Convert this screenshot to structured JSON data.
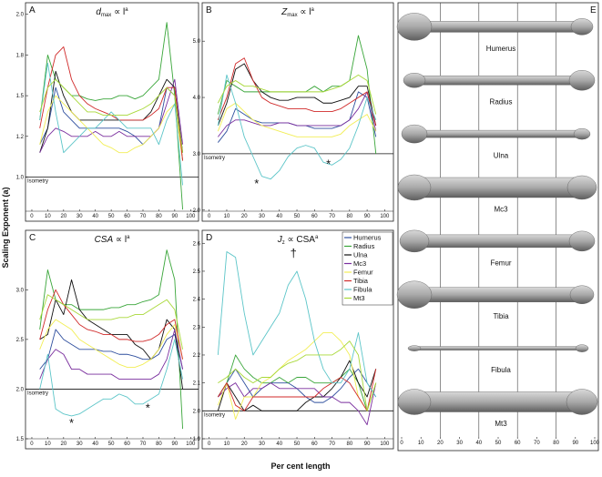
{
  "ylabel": "Scaling Exponent (a)",
  "xlabel": "Per cent length",
  "chart_data": [
    {
      "type": "line",
      "label": "A",
      "title": {
        "base": "d",
        "sub": "max",
        "rest": " ∝ l",
        "sup": "a"
      },
      "x": [
        5,
        10,
        15,
        20,
        25,
        30,
        35,
        40,
        45,
        50,
        55,
        60,
        65,
        70,
        75,
        80,
        85,
        90,
        95
      ],
      "xlim": [
        -4,
        105
      ],
      "xticks": [
        0,
        10,
        20,
        30,
        40,
        50,
        60,
        70,
        80,
        90,
        100
      ],
      "ylim": [
        0.79,
        2.06
      ],
      "yticks": [
        {
          "value": 1.0,
          "label": "1.0"
        },
        {
          "value": 1.25,
          "label": "1.2"
        },
        {
          "value": 1.5,
          "label": "1.5"
        },
        {
          "value": 1.75,
          "label": "1.8"
        },
        {
          "value": 2.0,
          "label": "2.0"
        }
      ],
      "reference": {
        "value": 1,
        "label": "Isometry"
      },
      "series": [
        {
          "color": "#2f4f9e",
          "values": [
            1.2,
            1.3,
            1.55,
            1.4,
            1.35,
            1.3,
            1.3,
            1.3,
            1.3,
            1.3,
            1.3,
            1.28,
            1.25,
            1.2,
            1.25,
            1.3,
            1.55,
            1.5,
            1.1
          ]
        },
        {
          "color": "#3aa63a",
          "values": [
            1.35,
            1.75,
            1.6,
            1.55,
            1.5,
            1.5,
            1.48,
            1.47,
            1.48,
            1.48,
            1.5,
            1.5,
            1.48,
            1.5,
            1.55,
            1.6,
            1.95,
            1.5,
            0.8
          ]
        },
        {
          "color": "#111111",
          "values": [
            1.15,
            1.3,
            1.65,
            1.5,
            1.4,
            1.35,
            1.35,
            1.35,
            1.35,
            1.35,
            1.35,
            1.35,
            1.35,
            1.35,
            1.4,
            1.5,
            1.6,
            1.55,
            1.15
          ]
        },
        {
          "color": "#7a2e9e",
          "values": [
            1.15,
            1.25,
            1.3,
            1.28,
            1.25,
            1.25,
            1.25,
            1.28,
            1.25,
            1.25,
            1.28,
            1.25,
            1.25,
            1.25,
            1.25,
            1.3,
            1.45,
            1.6,
            1.2
          ]
        },
        {
          "color": "#f2ee55",
          "values": [
            1.2,
            1.4,
            1.5,
            1.45,
            1.4,
            1.35,
            1.3,
            1.25,
            1.2,
            1.18,
            1.15,
            1.15,
            1.18,
            1.2,
            1.25,
            1.3,
            1.4,
            1.45,
            1.1
          ]
        },
        {
          "color": "#d02a2a",
          "values": [
            1.3,
            1.55,
            1.75,
            1.8,
            1.6,
            1.5,
            1.45,
            1.42,
            1.4,
            1.38,
            1.35,
            1.35,
            1.35,
            1.35,
            1.38,
            1.42,
            1.55,
            1.55,
            1.1
          ]
        },
        {
          "color": "#5cc5c8",
          "values": [
            1.35,
            1.7,
            1.4,
            1.15,
            1.2,
            1.25,
            1.3,
            1.3,
            1.35,
            1.4,
            1.35,
            1.3,
            1.3,
            1.3,
            1.3,
            1.2,
            1.35,
            1.45,
            0.95
          ]
        },
        {
          "color": "#a8d838",
          "values": [
            1.4,
            1.55,
            1.6,
            1.55,
            1.5,
            1.45,
            1.4,
            1.4,
            1.38,
            1.38,
            1.38,
            1.38,
            1.4,
            1.42,
            1.45,
            1.5,
            1.55,
            1.5,
            1.15
          ]
        }
      ],
      "annotations": []
    },
    {
      "type": "line",
      "label": "B",
      "title": {
        "base": "Z",
        "sub": "max",
        "rest": " ∝ l",
        "sup": "a"
      },
      "x": [
        5,
        10,
        15,
        20,
        25,
        30,
        35,
        40,
        45,
        50,
        55,
        60,
        65,
        70,
        75,
        80,
        85,
        90,
        95
      ],
      "xlim": [
        -4,
        105
      ],
      "xticks": [
        0,
        10,
        20,
        30,
        40,
        50,
        60,
        70,
        80,
        90,
        100
      ],
      "ylim": [
        1.98,
        5.65
      ],
      "yticks": [
        {
          "value": 2.0,
          "label": "2.0"
        },
        {
          "value": 3.0,
          "label": "3.0"
        },
        {
          "value": 4.0,
          "label": "4.0"
        },
        {
          "value": 5.0,
          "label": "5.0"
        }
      ],
      "reference": {
        "value": 3,
        "label": "Isometry"
      },
      "series": [
        {
          "color": "#2f4f9e",
          "values": [
            3.2,
            3.4,
            3.8,
            3.7,
            3.6,
            3.55,
            3.55,
            3.55,
            3.55,
            3.5,
            3.5,
            3.45,
            3.45,
            3.45,
            3.5,
            3.6,
            4.1,
            4.0,
            3.3
          ]
        },
        {
          "color": "#3aa63a",
          "values": [
            3.7,
            4.3,
            4.2,
            4.1,
            4.1,
            4.1,
            4.1,
            4.1,
            4.1,
            4.1,
            4.1,
            4.2,
            4.1,
            4.2,
            4.2,
            4.3,
            5.1,
            4.5,
            3.0
          ]
        },
        {
          "color": "#111111",
          "values": [
            3.5,
            3.9,
            4.5,
            4.6,
            4.3,
            4.1,
            4.0,
            3.95,
            3.95,
            4.0,
            4.0,
            4.0,
            3.9,
            3.9,
            3.95,
            4.0,
            4.2,
            4.2,
            3.5
          ]
        },
        {
          "color": "#7a2e9e",
          "values": [
            3.3,
            3.5,
            3.6,
            3.6,
            3.55,
            3.5,
            3.5,
            3.55,
            3.55,
            3.5,
            3.5,
            3.5,
            3.5,
            3.5,
            3.5,
            3.6,
            3.8,
            4.1,
            3.4
          ]
        },
        {
          "color": "#f2ee55",
          "values": [
            3.4,
            3.8,
            3.9,
            3.75,
            3.6,
            3.5,
            3.45,
            3.4,
            3.35,
            3.3,
            3.3,
            3.3,
            3.3,
            3.3,
            3.35,
            3.5,
            3.6,
            3.7,
            3.4
          ]
        },
        {
          "color": "#d02a2a",
          "values": [
            3.6,
            4.0,
            4.6,
            4.7,
            4.3,
            4.0,
            3.9,
            3.85,
            3.8,
            3.8,
            3.8,
            3.75,
            3.75,
            3.75,
            3.8,
            3.9,
            4.0,
            4.1,
            3.5
          ]
        },
        {
          "color": "#5cc5c8",
          "values": [
            3.5,
            4.4,
            3.9,
            3.3,
            2.95,
            2.6,
            2.55,
            2.7,
            2.95,
            3.1,
            3.15,
            3.1,
            2.85,
            2.8,
            2.9,
            3.1,
            3.5,
            4.0,
            3.6
          ]
        },
        {
          "color": "#a8d838",
          "values": [
            3.9,
            4.2,
            4.3,
            4.2,
            4.2,
            4.15,
            4.1,
            4.1,
            4.1,
            4.1,
            4.1,
            4.1,
            4.1,
            4.15,
            4.2,
            4.3,
            4.4,
            4.3,
            3.7
          ]
        }
      ],
      "annotations": [
        "*",
        "*"
      ]
    },
    {
      "type": "line",
      "label": "C",
      "title": {
        "base": "CSA",
        "rest": " ∝ l",
        "sup": "a"
      },
      "x": [
        5,
        10,
        15,
        20,
        25,
        30,
        35,
        40,
        45,
        50,
        55,
        60,
        65,
        70,
        75,
        80,
        85,
        90,
        95
      ],
      "xlim": [
        -4,
        105
      ],
      "xticks": [
        0,
        10,
        20,
        30,
        40,
        50,
        60,
        70,
        80,
        90,
        100
      ],
      "ylim": [
        1.5,
        3.58
      ],
      "yticks": [
        1.5,
        {
          "value": 2.0,
          "label": "2.0"
        },
        2.5,
        {
          "value": 3.0,
          "label": "3.0"
        }
      ],
      "reference": {
        "value": 2,
        "label": "Isometry"
      },
      "series": [
        {
          "color": "#2f4f9e",
          "values": [
            2.2,
            2.3,
            2.6,
            2.5,
            2.45,
            2.4,
            2.4,
            2.4,
            2.38,
            2.38,
            2.35,
            2.35,
            2.33,
            2.3,
            2.3,
            2.35,
            2.5,
            2.55,
            2.2
          ]
        },
        {
          "color": "#3aa63a",
          "values": [
            2.6,
            3.2,
            2.9,
            2.85,
            2.85,
            2.8,
            2.8,
            2.8,
            2.8,
            2.82,
            2.82,
            2.85,
            2.85,
            2.88,
            2.9,
            2.95,
            3.4,
            3.1,
            1.6
          ]
        },
        {
          "color": "#111111",
          "values": [
            2.5,
            2.55,
            2.9,
            2.75,
            3.1,
            2.8,
            2.7,
            2.65,
            2.6,
            2.55,
            2.55,
            2.55,
            2.45,
            2.4,
            2.3,
            2.4,
            2.7,
            2.6,
            2.0
          ]
        },
        {
          "color": "#7a2e9e",
          "values": [
            2.1,
            2.3,
            2.4,
            2.35,
            2.2,
            2.2,
            2.15,
            2.15,
            2.15,
            2.15,
            2.1,
            2.1,
            2.1,
            2.1,
            2.1,
            2.15,
            2.3,
            2.6,
            2.2
          ]
        },
        {
          "color": "#f2ee55",
          "values": [
            2.4,
            2.6,
            2.7,
            2.65,
            2.6,
            2.5,
            2.45,
            2.4,
            2.35,
            2.3,
            2.25,
            2.22,
            2.22,
            2.25,
            2.3,
            2.4,
            2.55,
            2.65,
            2.3
          ]
        },
        {
          "color": "#d02a2a",
          "values": [
            2.5,
            2.8,
            3.0,
            2.85,
            2.75,
            2.65,
            2.6,
            2.58,
            2.55,
            2.55,
            2.5,
            2.5,
            2.48,
            2.48,
            2.5,
            2.55,
            2.65,
            2.7,
            2.3
          ]
        },
        {
          "color": "#5cc5c8",
          "values": [
            2.0,
            2.35,
            1.8,
            1.75,
            1.73,
            1.75,
            1.8,
            1.85,
            1.9,
            1.9,
            1.95,
            1.92,
            1.85,
            1.85,
            1.9,
            1.95,
            2.2,
            2.5,
            2.1
          ]
        },
        {
          "color": "#a8d838",
          "values": [
            2.7,
            2.95,
            2.9,
            2.85,
            2.8,
            2.75,
            2.7,
            2.7,
            2.7,
            2.7,
            2.72,
            2.72,
            2.75,
            2.75,
            2.8,
            2.85,
            2.9,
            2.8,
            2.4
          ]
        }
      ],
      "annotations": [
        "*",
        "*"
      ]
    },
    {
      "type": "line",
      "label": "D",
      "title": {
        "base": "J",
        "sub": "z",
        "rest": " ∝ CSA",
        "sup": "a"
      },
      "x": [
        5,
        10,
        15,
        20,
        25,
        30,
        35,
        40,
        45,
        50,
        55,
        60,
        65,
        70,
        75,
        80,
        85,
        90,
        95
      ],
      "xlim": [
        -4,
        105
      ],
      "xticks": [
        0,
        10,
        20,
        30,
        40,
        50,
        60,
        70,
        80,
        90,
        100
      ],
      "ylim": [
        1.9,
        2.64
      ],
      "yticks": [
        1.9,
        {
          "value": 2.0,
          "label": "2.0"
        },
        2.1,
        2.2,
        2.3,
        2.4,
        2.5,
        2.6
      ],
      "reference": {
        "value": 2,
        "label": "Isometry"
      },
      "legend": "top-right",
      "series": [
        {
          "name": "Humerus",
          "color": "#2f4f9e",
          "values": [
            2.05,
            2.1,
            2.15,
            2.1,
            2.05,
            2.08,
            2.1,
            2.1,
            2.1,
            2.08,
            2.05,
            2.03,
            2.03,
            2.05,
            2.08,
            2.12,
            2.15,
            2.1,
            2.05
          ]
        },
        {
          "name": "Radius",
          "color": "#3aa63a",
          "values": [
            2.05,
            2.1,
            2.2,
            2.15,
            2.12,
            2.1,
            2.1,
            2.12,
            2.1,
            2.12,
            2.12,
            2.1,
            2.1,
            2.1,
            2.12,
            2.15,
            2.1,
            2.0,
            2.1
          ]
        },
        {
          "name": "Ulna",
          "color": "#111111",
          "values": [
            2.0,
            2.1,
            2.05,
            2.0,
            2.02,
            2.0,
            2.0,
            2.0,
            2.0,
            2.0,
            2.03,
            2.05,
            2.05,
            2.08,
            2.12,
            2.18,
            2.1,
            2.05,
            2.15
          ]
        },
        {
          "name": "Mc3",
          "color": "#7a2e9e",
          "values": [
            2.05,
            2.08,
            2.1,
            2.05,
            2.08,
            2.08,
            2.1,
            2.08,
            2.08,
            2.08,
            2.08,
            2.08,
            2.05,
            2.05,
            2.03,
            2.03,
            2.0,
            1.95,
            2.1
          ]
        },
        {
          "name": "Femur",
          "color": "#f2ee55",
          "values": [
            2.02,
            2.1,
            1.97,
            2.05,
            2.05,
            2.1,
            2.12,
            2.15,
            2.18,
            2.2,
            2.22,
            2.25,
            2.28,
            2.28,
            2.25,
            2.2,
            2.05,
            2.0,
            2.1
          ]
        },
        {
          "name": "Tibia",
          "color": "#d02a2a",
          "values": [
            2.05,
            2.1,
            2.02,
            2.0,
            2.05,
            2.05,
            2.05,
            2.05,
            2.05,
            2.05,
            2.05,
            2.05,
            2.08,
            2.1,
            2.12,
            2.1,
            2.05,
            2.0,
            2.15
          ]
        },
        {
          "name": "Fibula",
          "color": "#5cc5c8",
          "values": [
            2.2,
            2.57,
            2.55,
            2.35,
            2.2,
            2.25,
            2.3,
            2.35,
            2.45,
            2.5,
            2.4,
            2.25,
            2.15,
            2.1,
            2.1,
            2.15,
            2.28,
            2.1,
            2.05
          ]
        },
        {
          "name": "Mt3",
          "color": "#a8d838",
          "values": [
            2.1,
            2.12,
            2.15,
            2.12,
            2.1,
            2.12,
            2.12,
            2.15,
            2.17,
            2.18,
            2.2,
            2.2,
            2.2,
            2.2,
            2.22,
            2.25,
            2.2,
            2.0,
            2.1
          ]
        }
      ],
      "annotations": [
        "†"
      ]
    }
  ],
  "bone_panel": {
    "label": "E",
    "bones": [
      "Humerus",
      "Radius",
      "Ulna",
      "Mc3",
      "Femur",
      "Tibia",
      "Fibula",
      "Mt3"
    ],
    "xlim": [
      0,
      100
    ],
    "xticks": [
      0,
      10,
      20,
      30,
      40,
      50,
      60,
      70,
      80,
      90,
      100
    ],
    "grid": [
      20,
      40,
      60,
      80
    ]
  }
}
